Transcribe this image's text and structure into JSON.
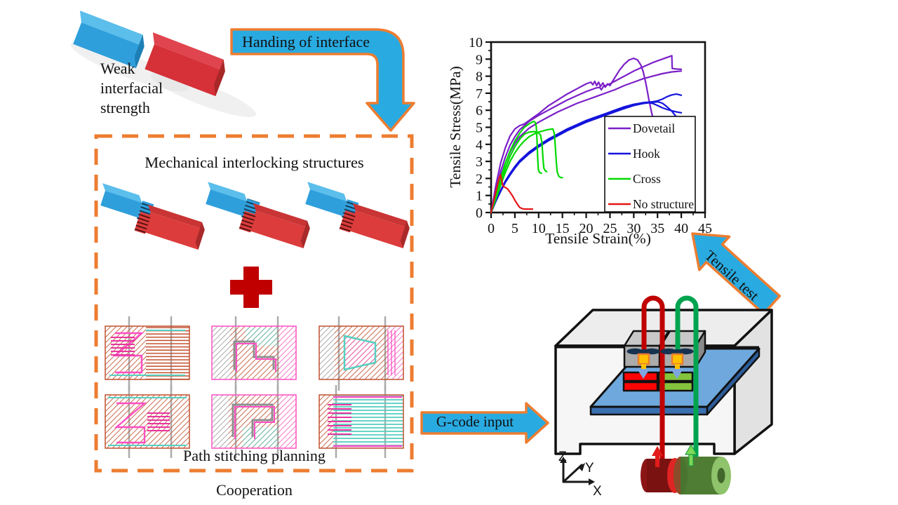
{
  "labels": {
    "weak": "Weak\ninterfacial\nstrength",
    "handing": "Handing of interface",
    "mechanical": "Mechanical interlocking structures",
    "path_planning": "Path stitching planning",
    "cooperation": "Cooperation",
    "gcode": "G-code input",
    "tensile_test": "Tensile test",
    "axis_x": "X",
    "axis_y": "Y",
    "axis_z": "Z"
  },
  "colors": {
    "arrow_fill": "#29ABE2",
    "arrow_border": "#ED7D31",
    "dashed_box": "#ED7D31",
    "plus_sign": "#C00000",
    "block_blue": "#2F9FDC",
    "block_red": "#DC3C3C",
    "bed_blue": "#6FA8DC",
    "nozzle_yellow": "#FFC000",
    "tube_red": "#C00000",
    "tube_green": "#00A44F"
  },
  "chart_data": {
    "type": "line",
    "title": "",
    "xlabel": "Tensile Strain(%)",
    "ylabel": "Tensile Stress(MPa)",
    "xlim": [
      0,
      45
    ],
    "ylim": [
      0,
      10
    ],
    "xticks": [
      0,
      5,
      10,
      15,
      20,
      25,
      30,
      35,
      40,
      45
    ],
    "yticks": [
      0,
      1,
      2,
      3,
      4,
      5,
      6,
      7,
      8,
      9,
      10
    ],
    "grid": false,
    "legend_position": "inside-bottom-right",
    "series": [
      {
        "name": "Dovetail",
        "color": "#7B1FC8",
        "curves": [
          [
            [
              0,
              0
            ],
            [
              1,
              1.6
            ],
            [
              2,
              2.9
            ],
            [
              3,
              3.8
            ],
            [
              4,
              4.5
            ],
            [
              5,
              4.9
            ],
            [
              6,
              5.1
            ],
            [
              7,
              5.2
            ],
            [
              8,
              5.4
            ],
            [
              10,
              5.8
            ],
            [
              12,
              6.25
            ],
            [
              14,
              6.6
            ],
            [
              16,
              6.95
            ],
            [
              18,
              7.25
            ],
            [
              20,
              7.55
            ],
            [
              21,
              7.65
            ],
            [
              21.4,
              7.5
            ],
            [
              21.8,
              7.7
            ],
            [
              22.2,
              7.45
            ],
            [
              22.6,
              7.65
            ],
            [
              23,
              7.4
            ],
            [
              23.5,
              7.6
            ],
            [
              24,
              7.35
            ],
            [
              24.5,
              7.55
            ],
            [
              25,
              7.45
            ],
            [
              26,
              7.9
            ],
            [
              27,
              8.35
            ],
            [
              28,
              8.7
            ],
            [
              29,
              8.95
            ],
            [
              30,
              9.05
            ],
            [
              30.8,
              8.95
            ],
            [
              31.5,
              8.65
            ],
            [
              32,
              8.25
            ],
            [
              32.6,
              7.5
            ],
            [
              33.2,
              6.6
            ],
            [
              33.8,
              5.8
            ],
            [
              34.2,
              5.4
            ]
          ],
          [
            [
              0,
              0
            ],
            [
              1,
              1.3
            ],
            [
              2,
              2.4
            ],
            [
              3,
              3.25
            ],
            [
              4,
              3.95
            ],
            [
              5,
              4.45
            ],
            [
              6,
              4.85
            ],
            [
              8,
              5.35
            ],
            [
              10,
              5.7
            ],
            [
              12,
              6.0
            ],
            [
              14,
              6.3
            ],
            [
              16,
              6.6
            ],
            [
              18,
              6.85
            ],
            [
              20,
              7.1
            ],
            [
              22,
              7.3
            ],
            [
              22.8,
              7.35
            ],
            [
              23.2,
              7.2
            ],
            [
              23.6,
              7.4
            ],
            [
              25,
              7.55
            ],
            [
              26,
              7.7
            ],
            [
              28,
              8.0
            ],
            [
              30,
              8.3
            ],
            [
              32,
              8.55
            ],
            [
              34,
              8.8
            ],
            [
              36,
              9.0
            ],
            [
              37.5,
              9.15
            ],
            [
              38,
              9.2
            ],
            [
              38.1,
              8.45
            ],
            [
              39,
              8.42
            ],
            [
              40,
              8.4
            ]
          ],
          [
            [
              0,
              0
            ],
            [
              1,
              1.1
            ],
            [
              2,
              2.1
            ],
            [
              3,
              2.9
            ],
            [
              4,
              3.55
            ],
            [
              5,
              4.05
            ],
            [
              6,
              4.45
            ],
            [
              8,
              4.95
            ],
            [
              10,
              5.3
            ],
            [
              12,
              5.6
            ],
            [
              14,
              5.9
            ],
            [
              16,
              6.15
            ],
            [
              18,
              6.4
            ],
            [
              20,
              6.6
            ],
            [
              22,
              6.8
            ],
            [
              24,
              7.0
            ],
            [
              26,
              7.2
            ],
            [
              28,
              7.45
            ],
            [
              30,
              7.65
            ],
            [
              32,
              7.85
            ],
            [
              34,
              8.0
            ],
            [
              36,
              8.15
            ],
            [
              38,
              8.25
            ],
            [
              40,
              8.3
            ]
          ]
        ]
      },
      {
        "name": "Hook",
        "color": "#1414DC",
        "curves": [
          [
            [
              0,
              0
            ],
            [
              1,
              0.7
            ],
            [
              2,
              1.3
            ],
            [
              3,
              1.85
            ],
            [
              4,
              2.3
            ],
            [
              5,
              2.7
            ],
            [
              6,
              3.05
            ],
            [
              8,
              3.55
            ],
            [
              10,
              3.95
            ],
            [
              12,
              4.3
            ],
            [
              14,
              4.6
            ],
            [
              16,
              4.9
            ],
            [
              18,
              5.15
            ],
            [
              20,
              5.4
            ],
            [
              22,
              5.6
            ],
            [
              24,
              5.8
            ],
            [
              26,
              6.0
            ],
            [
              28,
              6.2
            ],
            [
              30,
              6.35
            ],
            [
              32,
              6.45
            ],
            [
              34,
              6.5
            ],
            [
              35,
              6.55
            ],
            [
              36,
              6.65
            ],
            [
              37,
              6.8
            ],
            [
              38,
              6.9
            ],
            [
              39,
              6.95
            ],
            [
              40,
              6.88
            ]
          ],
          [
            [
              0,
              0
            ],
            [
              1,
              0.68
            ],
            [
              2,
              1.27
            ],
            [
              3,
              1.8
            ],
            [
              4,
              2.25
            ],
            [
              5,
              2.65
            ],
            [
              6,
              3.0
            ],
            [
              8,
              3.5
            ],
            [
              10,
              3.9
            ],
            [
              12,
              4.25
            ],
            [
              14,
              4.55
            ],
            [
              16,
              4.85
            ],
            [
              18,
              5.1
            ],
            [
              20,
              5.35
            ],
            [
              22,
              5.55
            ],
            [
              24,
              5.75
            ],
            [
              26,
              5.95
            ],
            [
              28,
              6.15
            ],
            [
              30,
              6.3
            ],
            [
              32,
              6.42
            ],
            [
              33,
              6.45
            ],
            [
              34,
              6.4
            ],
            [
              35,
              6.28
            ],
            [
              36,
              6.15
            ],
            [
              37,
              6.05
            ],
            [
              38,
              5.97
            ],
            [
              39,
              5.9
            ],
            [
              40,
              5.85
            ]
          ],
          [
            [
              0,
              0
            ],
            [
              1,
              0.66
            ],
            [
              2,
              1.24
            ],
            [
              3,
              1.77
            ],
            [
              4,
              2.2
            ],
            [
              5,
              2.6
            ],
            [
              6,
              2.95
            ],
            [
              8,
              3.45
            ],
            [
              10,
              3.85
            ],
            [
              12,
              4.2
            ],
            [
              14,
              4.5
            ],
            [
              16,
              4.8
            ],
            [
              18,
              5.05
            ],
            [
              20,
              5.3
            ],
            [
              22,
              5.5
            ],
            [
              24,
              5.7
            ],
            [
              26,
              5.9
            ],
            [
              28,
              6.1
            ],
            [
              30,
              6.28
            ],
            [
              32,
              6.4
            ],
            [
              33.5,
              6.45
            ],
            [
              35,
              6.5
            ],
            [
              36,
              6.42
            ],
            [
              37,
              6.2
            ],
            [
              38,
              5.95
            ],
            [
              39,
              5.6
            ],
            [
              40,
              5.35
            ]
          ]
        ]
      },
      {
        "name": "Cross",
        "color": "#00D900",
        "curves": [
          [
            [
              0,
              0
            ],
            [
              1,
              1.0
            ],
            [
              2,
              2.0
            ],
            [
              3,
              2.9
            ],
            [
              4,
              3.6
            ],
            [
              5,
              4.2
            ],
            [
              6,
              4.65
            ],
            [
              7,
              5.0
            ],
            [
              8,
              5.2
            ],
            [
              8.6,
              5.3
            ],
            [
              9,
              5.35
            ],
            [
              9.3,
              5.28
            ],
            [
              9.5,
              5.05
            ],
            [
              9.65,
              4.3
            ],
            [
              9.8,
              3.2
            ],
            [
              9.95,
              2.5
            ],
            [
              10.2,
              2.35
            ],
            [
              10.6,
              2.3
            ]
          ],
          [
            [
              0,
              0
            ],
            [
              1,
              0.9
            ],
            [
              2,
              1.8
            ],
            [
              3,
              2.6
            ],
            [
              4,
              3.3
            ],
            [
              5,
              3.85
            ],
            [
              6,
              4.3
            ],
            [
              7,
              4.6
            ],
            [
              8,
              4.72
            ],
            [
              9,
              4.75
            ],
            [
              9.8,
              4.7
            ],
            [
              10.4,
              4.55
            ],
            [
              10.7,
              4.1
            ],
            [
              10.9,
              3.2
            ],
            [
              11.1,
              2.6
            ],
            [
              11.4,
              2.45
            ],
            [
              11.7,
              2.4
            ]
          ],
          [
            [
              0,
              0
            ],
            [
              1,
              0.8
            ],
            [
              2,
              1.6
            ],
            [
              3,
              2.35
            ],
            [
              4,
              3.0
            ],
            [
              5,
              3.5
            ],
            [
              6,
              3.9
            ],
            [
              7,
              4.2
            ],
            [
              8,
              4.45
            ],
            [
              9,
              4.6
            ],
            [
              10,
              4.72
            ],
            [
              11,
              4.8
            ],
            [
              12,
              4.87
            ],
            [
              13,
              4.9
            ],
            [
              13.3,
              4.65
            ],
            [
              13.5,
              3.9
            ],
            [
              13.7,
              3.0
            ],
            [
              13.9,
              2.4
            ],
            [
              14.2,
              2.15
            ],
            [
              14.6,
              2.05
            ],
            [
              15,
              2.05
            ]
          ]
        ]
      },
      {
        "name": "No structure",
        "color": "#E51616",
        "curves": [
          [
            [
              0,
              0
            ],
            [
              0.5,
              0.6
            ],
            [
              1,
              1.2
            ],
            [
              1.5,
              1.8
            ],
            [
              1.8,
              2.1
            ],
            [
              2,
              2.2
            ],
            [
              2.2,
              1.95
            ],
            [
              2.4,
              1.65
            ],
            [
              2.6,
              1.52
            ],
            [
              3,
              1.47
            ],
            [
              3.5,
              1.38
            ],
            [
              4,
              1.18
            ],
            [
              4.5,
              0.98
            ],
            [
              5,
              0.72
            ],
            [
              5.5,
              0.5
            ],
            [
              6,
              0.3
            ],
            [
              6.5,
              0.23
            ],
            [
              7,
              0.2
            ],
            [
              8,
              0.2
            ],
            [
              8.7,
              0.2
            ]
          ]
        ]
      }
    ]
  }
}
